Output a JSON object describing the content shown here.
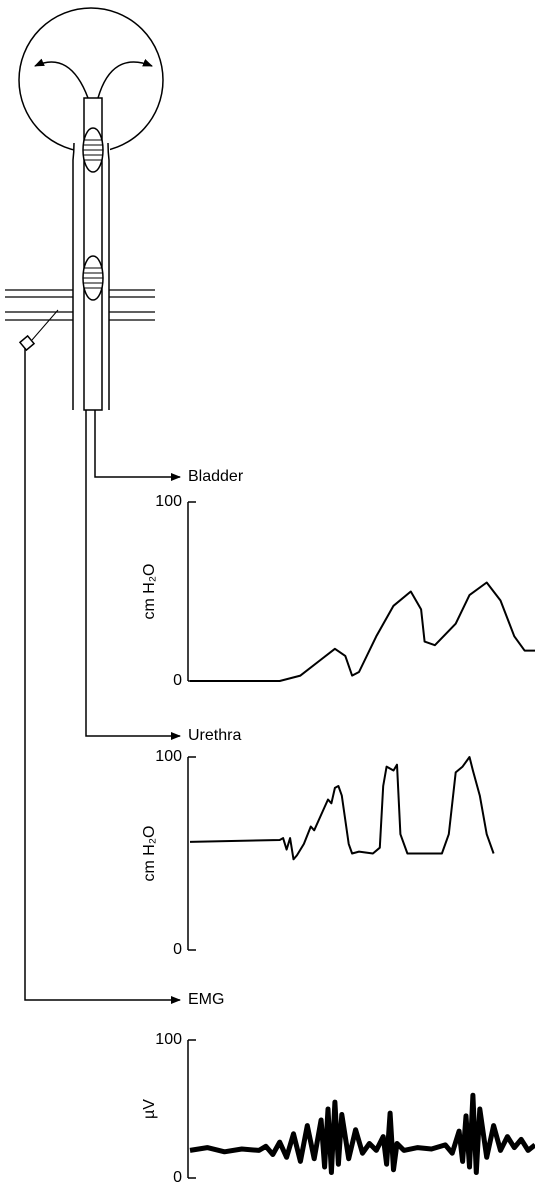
{
  "chart_data": [
    {
      "type": "line",
      "title": "Bladder",
      "y_label": "cm H₂O",
      "ylim": [
        0,
        100
      ],
      "yticks": [
        0,
        100
      ],
      "xlim": [
        0,
        100
      ],
      "x": [
        0,
        26,
        32,
        38,
        42,
        45,
        47,
        49,
        54,
        59,
        64,
        67,
        68,
        71,
        77,
        81,
        86,
        90,
        94,
        97,
        100
      ],
      "values": [
        0,
        0,
        3,
        12,
        18,
        14,
        3,
        5,
        25,
        42,
        50,
        40,
        22,
        20,
        32,
        48,
        55,
        45,
        25,
        17,
        17
      ],
      "color": "#000000"
    },
    {
      "type": "line",
      "title": "Urethra",
      "y_label": "cm H₂O",
      "ylim": [
        0,
        100
      ],
      "yticks": [
        0,
        100
      ],
      "xlim": [
        0,
        100
      ],
      "x": [
        0,
        26,
        27,
        28,
        29,
        30,
        31,
        33,
        35,
        36,
        38,
        40,
        41,
        42,
        43,
        44,
        46,
        47,
        49,
        53,
        55,
        56,
        57,
        59,
        60,
        61,
        63,
        66,
        73,
        75,
        77,
        79,
        81,
        82,
        84,
        86,
        88
      ],
      "values": [
        56,
        57,
        58,
        52,
        58,
        47,
        49,
        55,
        64,
        62,
        70,
        78,
        76,
        84,
        85,
        80,
        55,
        50,
        51,
        50,
        53,
        85,
        95,
        93,
        96,
        60,
        50,
        50,
        50,
        60,
        92,
        95,
        100,
        93,
        80,
        60,
        50
      ],
      "color": "#000000"
    },
    {
      "type": "line",
      "title": "EMG",
      "y_label": "µV",
      "ylim": [
        0,
        100
      ],
      "yticks": [
        0,
        100
      ],
      "xlim": [
        0,
        100
      ],
      "x": [
        0,
        5,
        10,
        15,
        20,
        22,
        24,
        26,
        28,
        30,
        32,
        34,
        36,
        38,
        39,
        40,
        41,
        42,
        43,
        44,
        46,
        48,
        50,
        52,
        54,
        56,
        57,
        58,
        59,
        60,
        62,
        66,
        70,
        74,
        76,
        78,
        79,
        80,
        81,
        82,
        83,
        84,
        86,
        88,
        90,
        92,
        94,
        96,
        98,
        100
      ],
      "values": [
        20,
        22,
        19,
        21,
        20,
        23,
        17,
        26,
        15,
        32,
        12,
        38,
        14,
        42,
        8,
        50,
        4,
        55,
        10,
        46,
        14,
        35,
        18,
        25,
        20,
        30,
        10,
        47,
        6,
        25,
        20,
        22,
        21,
        24,
        18,
        34,
        12,
        45,
        8,
        60,
        4,
        50,
        15,
        38,
        20,
        30,
        22,
        28,
        20,
        24
      ],
      "color": "#000000"
    }
  ]
}
